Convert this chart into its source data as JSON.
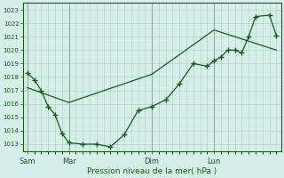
{
  "title": "",
  "xlabel": "Pression niveau de la mer( hPa )",
  "ylabel": "",
  "bg_color": "#d4eee8",
  "grid_color": "#a8ccc4",
  "line_color": "#1a5c1a",
  "ylim": [
    1012.5,
    1023.5
  ],
  "yticks": [
    1013,
    1014,
    1015,
    1016,
    1017,
    1018,
    1019,
    1020,
    1021,
    1022,
    1023
  ],
  "day_labels": [
    "Sam",
    "Mar",
    "Dim",
    "Lun"
  ],
  "day_positions": [
    0,
    36,
    108,
    162
  ],
  "xlim": [
    -4,
    220
  ],
  "total_hours": 216,
  "series1_x": [
    0,
    6,
    12,
    18,
    24,
    30,
    36,
    48,
    60,
    72,
    84,
    96,
    108,
    120,
    132,
    144,
    156,
    162,
    168,
    174,
    180,
    186,
    192,
    198,
    210,
    216
  ],
  "series1_y": [
    1018.3,
    1017.8,
    1017.0,
    1015.8,
    1015.2,
    1013.8,
    1013.1,
    1013.0,
    1013.0,
    1012.8,
    1013.7,
    1015.5,
    1015.8,
    1016.3,
    1017.5,
    1019.0,
    1018.8,
    1019.2,
    1019.5,
    1020.0,
    1020.0,
    1019.8,
    1021.0,
    1022.5,
    1022.6,
    1021.1
  ],
  "series2_x": [
    0,
    36,
    108,
    162,
    216
  ],
  "series2_y": [
    1017.2,
    1016.1,
    1018.2,
    1021.5,
    1020.0
  ]
}
